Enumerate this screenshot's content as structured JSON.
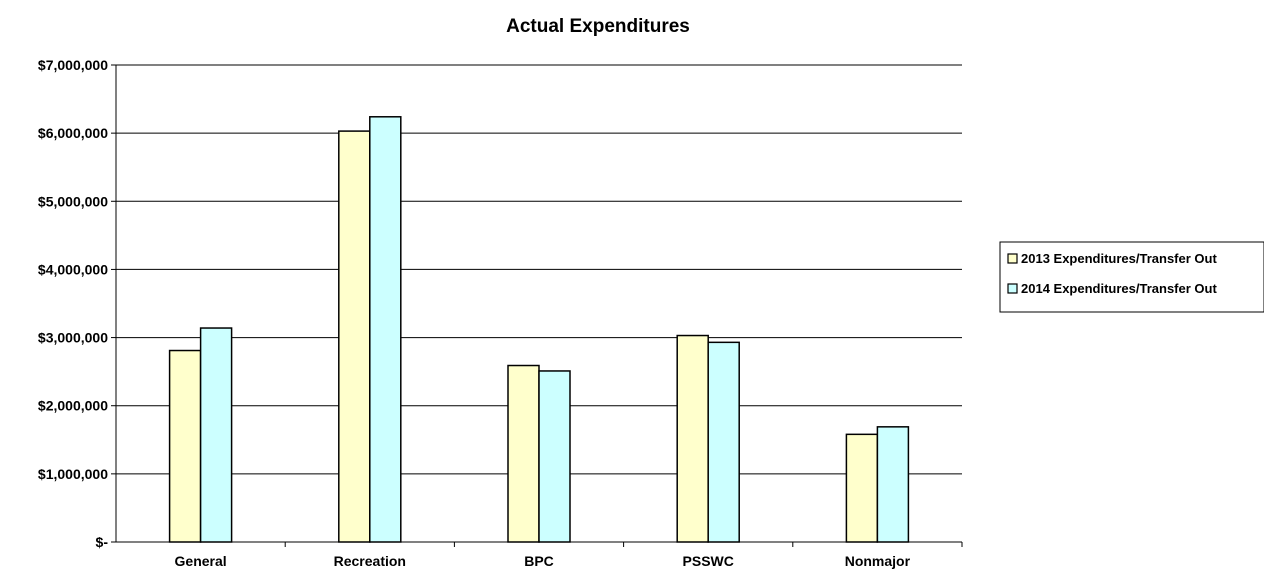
{
  "chart_data": {
    "type": "bar",
    "title": "Actual Expenditures",
    "xlabel": "",
    "ylabel": "",
    "categories": [
      "General",
      "Recreation",
      "BPC",
      "PSSWC",
      "Nonmajor"
    ],
    "series": [
      {
        "name": "2013 Expenditures/Transfer Out",
        "color": "#FFFFCC",
        "values": [
          2810000,
          6030000,
          2590000,
          3030000,
          1580000
        ]
      },
      {
        "name": "2014 Expenditures/Transfer Out",
        "color": "#CCFFFF",
        "values": [
          3140000,
          6240000,
          2510000,
          2930000,
          1690000
        ]
      }
    ],
    "ylim": [
      0,
      7000000
    ],
    "yticks": [
      0,
      1000000,
      2000000,
      3000000,
      4000000,
      5000000,
      6000000,
      7000000
    ],
    "ytick_labels": [
      "$-",
      "$1,000,000",
      "$2,000,000",
      "$3,000,000",
      "$4,000,000",
      "$5,000,000",
      "$6,000,000",
      "$7,000,000"
    ],
    "grid": true,
    "legend_position": "right"
  }
}
